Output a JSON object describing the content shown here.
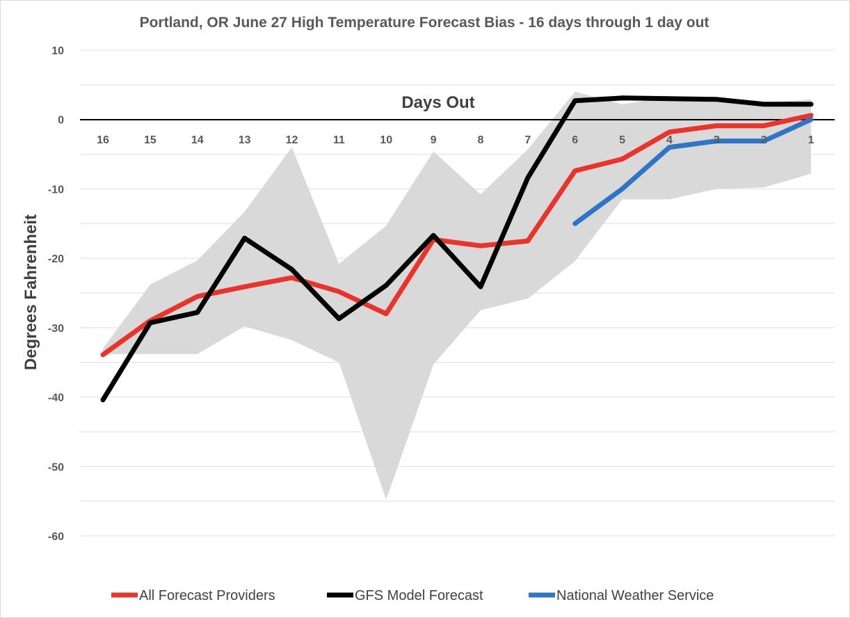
{
  "chart_data": {
    "type": "line",
    "title": "Portland, OR June 27 High Temperature Forecast Bias - 16 days through 1 day out",
    "xlabel": "Days Out",
    "ylabel": "Degrees Fahrenheit",
    "categories": [
      "16",
      "15",
      "14",
      "13",
      "12",
      "11",
      "10",
      "9",
      "8",
      "7",
      "6",
      "5",
      "4",
      "3",
      "2",
      "1"
    ],
    "ylim": [
      -60,
      10
    ],
    "yticks": [
      10,
      0,
      -10,
      -20,
      -30,
      -40,
      -50,
      -60
    ],
    "grid": true,
    "legend": "bottom",
    "range_band": {
      "color": "#d9d9d9",
      "upper": [
        -33,
        -23.8,
        -20.3,
        -13.3,
        -4,
        -20.8,
        -15.3,
        -4.6,
        -10.8,
        -4.3,
        4,
        2.2,
        3.2,
        3.2,
        2.4,
        2.9
      ],
      "lower": [
        -33.8,
        -33.8,
        -33.8,
        -29.8,
        -31.8,
        -35,
        -54.8,
        -35.3,
        -27.5,
        -25.8,
        -20.4,
        -11.5,
        -11.5,
        -10,
        -9.8,
        -7.8
      ]
    },
    "series": [
      {
        "name": "All Forecast Providers",
        "color": "#e8342a",
        "values": [
          -33.9,
          -29,
          -25.5,
          -24.1,
          -22.8,
          -24.8,
          -28,
          -17.3,
          -18.2,
          -17.5,
          -7.4,
          -5.7,
          -1.8,
          -0.9,
          -0.9,
          0.6
        ]
      },
      {
        "name": "GFS Model Forecast",
        "color": "#000000",
        "values": [
          -40.4,
          -29.3,
          -27.8,
          -17.1,
          -21.6,
          -28.7,
          -23.9,
          -16.7,
          -24.1,
          -8.4,
          2.7,
          3.1,
          3,
          2.9,
          2.2,
          2.2
        ]
      },
      {
        "name": "National Weather Service",
        "color": "#2e75c6",
        "values": [
          null,
          null,
          null,
          null,
          null,
          null,
          null,
          null,
          null,
          null,
          -15,
          -10,
          -4,
          -3.1,
          -3.1,
          0
        ]
      }
    ]
  }
}
